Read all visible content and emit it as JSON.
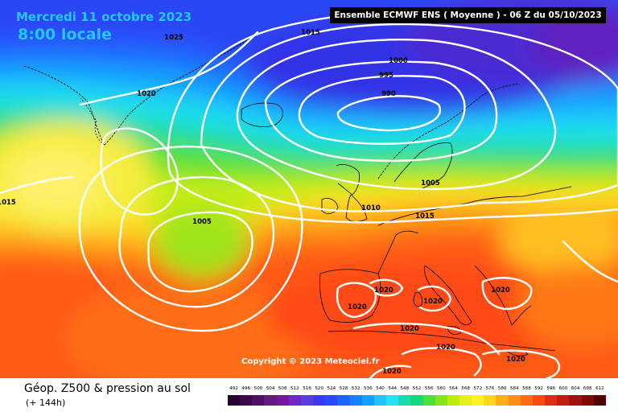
{
  "header": {
    "date": "Mercredi 11 octobre 2023",
    "time": "8:00 locale",
    "model": "Ensemble ECMWF ENS  ( Moyenne )  -  06 Z du 05/10/2023"
  },
  "copyright": "Copyright © 2023 Meteociel.fr",
  "footer": {
    "title": "Géop. Z500 & pression au sol",
    "subtitle": "(+ 144h)"
  },
  "isobar_labels": [
    "1025",
    "1015",
    "1020",
    "1000",
    "995",
    "990",
    "1005",
    "1010",
    "1015",
    "1005",
    "1015",
    "1020",
    "1020",
    "1020",
    "1020",
    "1020",
    "1020",
    "1020",
    "1020"
  ],
  "color_scale": {
    "values": [
      "492",
      "496",
      "500",
      "504",
      "508",
      "512",
      "516",
      "520",
      "524",
      "528",
      "532",
      "536",
      "540",
      "544",
      "548",
      "552",
      "556",
      "560",
      "564",
      "568",
      "572",
      "576",
      "580",
      "584",
      "588",
      "592",
      "596",
      "600",
      "604",
      "608",
      "612"
    ],
    "colors": [
      "#2a0030",
      "#3c0a48",
      "#500e64",
      "#641882",
      "#7418a4",
      "#6e28c4",
      "#5a3ce0",
      "#3a38f0",
      "#2a48ff",
      "#1c64ff",
      "#1482ff",
      "#14a0ff",
      "#22c4ff",
      "#22e2f4",
      "#18dcb0",
      "#14d87a",
      "#4ce03a",
      "#88e414",
      "#bcec10",
      "#e6f018",
      "#fff028",
      "#ffd41c",
      "#ffae14",
      "#ff8e14",
      "#ff6a14",
      "#f84a10",
      "#e02c10",
      "#c01c10",
      "#a01010",
      "#800808",
      "#500404"
    ]
  }
}
